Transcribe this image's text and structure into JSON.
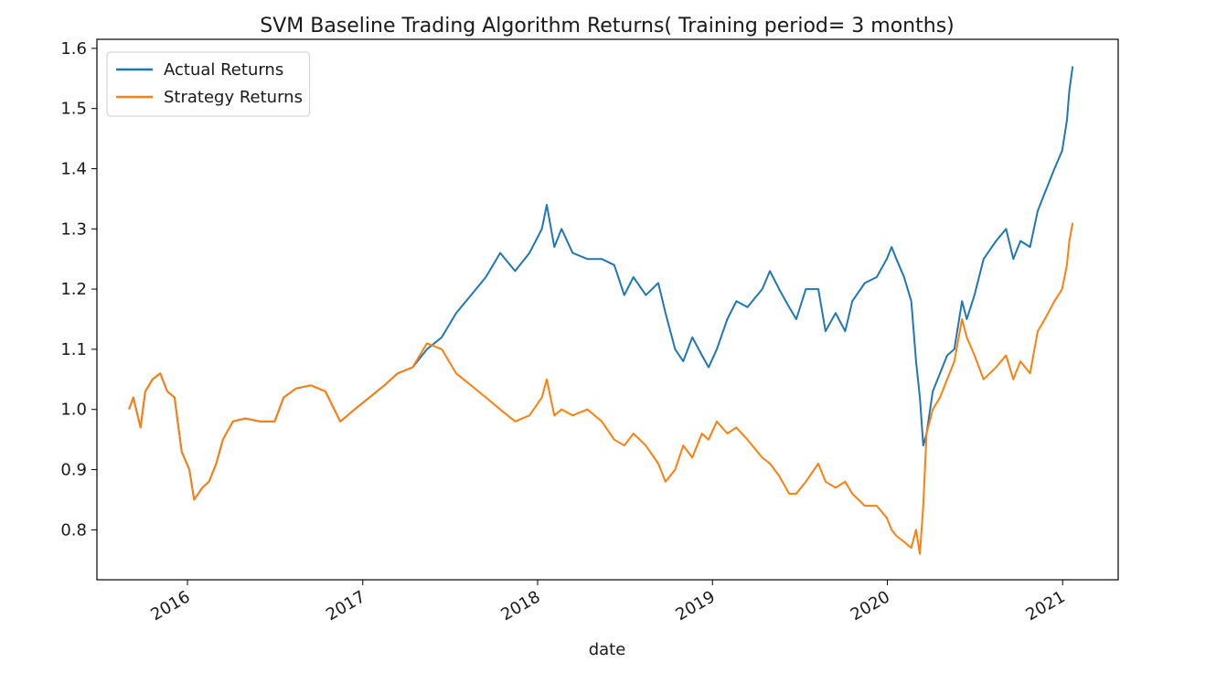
{
  "chart_data": {
    "type": "line",
    "title": "SVM Baseline Trading Algorithm Returns( Training period= 3 months)",
    "xlabel": "date",
    "ylabel": "",
    "x_ticks": [
      "2016",
      "2017",
      "2018",
      "2019",
      "2020",
      "2021"
    ],
    "y_ticks": [
      "0.8",
      "0.9",
      "1.0",
      "1.1",
      "1.2",
      "1.3",
      "1.4",
      "1.5",
      "1.6"
    ],
    "xlim": [
      "2015-06-26",
      "2021-04-27"
    ],
    "ylim": [
      0.717,
      1.615
    ],
    "grid": false,
    "legend_position": "top-left",
    "series": [
      {
        "name": "Actual Returns",
        "color": "#1f77b4",
        "points": [
          [
            "2015-09-01",
            1.0
          ],
          [
            "2015-09-10",
            1.02
          ],
          [
            "2015-09-25",
            0.97
          ],
          [
            "2015-10-05",
            1.03
          ],
          [
            "2015-10-20",
            1.05
          ],
          [
            "2015-11-05",
            1.06
          ],
          [
            "2015-11-20",
            1.03
          ],
          [
            "2015-12-05",
            1.02
          ],
          [
            "2015-12-20",
            0.93
          ],
          [
            "2016-01-05",
            0.9
          ],
          [
            "2016-01-15",
            0.85
          ],
          [
            "2016-02-01",
            0.87
          ],
          [
            "2016-02-15",
            0.88
          ],
          [
            "2016-03-01",
            0.91
          ],
          [
            "2016-03-15",
            0.95
          ],
          [
            "2016-04-05",
            0.98
          ],
          [
            "2016-05-01",
            0.985
          ],
          [
            "2016-06-01",
            0.98
          ],
          [
            "2016-07-01",
            0.98
          ],
          [
            "2016-07-20",
            1.02
          ],
          [
            "2016-08-15",
            1.035
          ],
          [
            "2016-09-15",
            1.04
          ],
          [
            "2016-10-15",
            1.03
          ],
          [
            "2016-11-15",
            0.98
          ],
          [
            "2016-12-15",
            1.0
          ],
          [
            "2017-01-15",
            1.02
          ],
          [
            "2017-02-15",
            1.04
          ],
          [
            "2017-03-15",
            1.06
          ],
          [
            "2017-04-15",
            1.07
          ],
          [
            "2017-05-15",
            1.1
          ],
          [
            "2017-06-15",
            1.12
          ],
          [
            "2017-07-15",
            1.16
          ],
          [
            "2017-08-15",
            1.19
          ],
          [
            "2017-09-15",
            1.22
          ],
          [
            "2017-10-15",
            1.26
          ],
          [
            "2017-11-15",
            1.23
          ],
          [
            "2017-12-15",
            1.26
          ],
          [
            "2018-01-10",
            1.3
          ],
          [
            "2018-01-20",
            1.34
          ],
          [
            "2018-02-05",
            1.27
          ],
          [
            "2018-02-20",
            1.3
          ],
          [
            "2018-03-15",
            1.26
          ],
          [
            "2018-04-15",
            1.25
          ],
          [
            "2018-05-15",
            1.25
          ],
          [
            "2018-06-10",
            1.24
          ],
          [
            "2018-07-01",
            1.19
          ],
          [
            "2018-07-20",
            1.22
          ],
          [
            "2018-08-15",
            1.19
          ],
          [
            "2018-09-10",
            1.21
          ],
          [
            "2018-09-25",
            1.16
          ],
          [
            "2018-10-15",
            1.1
          ],
          [
            "2018-11-01",
            1.08
          ],
          [
            "2018-11-20",
            1.12
          ],
          [
            "2018-12-10",
            1.09
          ],
          [
            "2018-12-24",
            1.07
          ],
          [
            "2019-01-10",
            1.1
          ],
          [
            "2019-02-01",
            1.15
          ],
          [
            "2019-02-20",
            1.18
          ],
          [
            "2019-03-15",
            1.17
          ],
          [
            "2019-04-15",
            1.2
          ],
          [
            "2019-05-01",
            1.23
          ],
          [
            "2019-05-20",
            1.2
          ],
          [
            "2019-06-10",
            1.17
          ],
          [
            "2019-06-25",
            1.15
          ],
          [
            "2019-07-15",
            1.2
          ],
          [
            "2019-08-10",
            1.2
          ],
          [
            "2019-08-25",
            1.13
          ],
          [
            "2019-09-15",
            1.16
          ],
          [
            "2019-10-05",
            1.13
          ],
          [
            "2019-10-20",
            1.18
          ],
          [
            "2019-11-15",
            1.21
          ],
          [
            "2019-12-10",
            1.22
          ],
          [
            "2019-12-31",
            1.25
          ],
          [
            "2020-01-10",
            1.27
          ],
          [
            "2020-01-20",
            1.25
          ],
          [
            "2020-02-05",
            1.22
          ],
          [
            "2020-02-20",
            1.18
          ],
          [
            "2020-03-01",
            1.08
          ],
          [
            "2020-03-09",
            1.02
          ],
          [
            "2020-03-16",
            0.94
          ],
          [
            "2020-03-23",
            0.96
          ],
          [
            "2020-04-05",
            1.03
          ],
          [
            "2020-04-20",
            1.06
          ],
          [
            "2020-05-05",
            1.09
          ],
          [
            "2020-05-20",
            1.1
          ],
          [
            "2020-06-05",
            1.18
          ],
          [
            "2020-06-15",
            1.15
          ],
          [
            "2020-07-01",
            1.19
          ],
          [
            "2020-07-20",
            1.25
          ],
          [
            "2020-08-15",
            1.28
          ],
          [
            "2020-09-05",
            1.3
          ],
          [
            "2020-09-20",
            1.25
          ],
          [
            "2020-10-05",
            1.28
          ],
          [
            "2020-10-25",
            1.27
          ],
          [
            "2020-11-10",
            1.33
          ],
          [
            "2020-11-25",
            1.36
          ],
          [
            "2020-12-15",
            1.4
          ],
          [
            "2020-12-31",
            1.43
          ],
          [
            "2021-01-10",
            1.48
          ],
          [
            "2021-01-15",
            1.53
          ],
          [
            "2021-01-22",
            1.57
          ]
        ]
      },
      {
        "name": "Strategy Returns",
        "color": "#ff7f0e",
        "points": [
          [
            "2015-09-01",
            1.0
          ],
          [
            "2015-09-10",
            1.02
          ],
          [
            "2015-09-25",
            0.97
          ],
          [
            "2015-10-05",
            1.03
          ],
          [
            "2015-10-20",
            1.05
          ],
          [
            "2015-11-05",
            1.06
          ],
          [
            "2015-11-20",
            1.03
          ],
          [
            "2015-12-05",
            1.02
          ],
          [
            "2015-12-20",
            0.93
          ],
          [
            "2016-01-05",
            0.9
          ],
          [
            "2016-01-15",
            0.85
          ],
          [
            "2016-02-01",
            0.87
          ],
          [
            "2016-02-15",
            0.88
          ],
          [
            "2016-03-01",
            0.91
          ],
          [
            "2016-03-15",
            0.95
          ],
          [
            "2016-04-05",
            0.98
          ],
          [
            "2016-05-01",
            0.985
          ],
          [
            "2016-06-01",
            0.98
          ],
          [
            "2016-07-01",
            0.98
          ],
          [
            "2016-07-20",
            1.02
          ],
          [
            "2016-08-15",
            1.035
          ],
          [
            "2016-09-15",
            1.04
          ],
          [
            "2016-10-15",
            1.03
          ],
          [
            "2016-11-15",
            0.98
          ],
          [
            "2016-12-15",
            1.0
          ],
          [
            "2017-01-15",
            1.02
          ],
          [
            "2017-02-15",
            1.04
          ],
          [
            "2017-03-15",
            1.06
          ],
          [
            "2017-04-15",
            1.07
          ],
          [
            "2017-05-15",
            1.11
          ],
          [
            "2017-06-15",
            1.1
          ],
          [
            "2017-07-15",
            1.06
          ],
          [
            "2017-08-15",
            1.04
          ],
          [
            "2017-09-15",
            1.02
          ],
          [
            "2017-10-15",
            1.0
          ],
          [
            "2017-11-15",
            0.98
          ],
          [
            "2017-12-15",
            0.99
          ],
          [
            "2018-01-10",
            1.02
          ],
          [
            "2018-01-20",
            1.05
          ],
          [
            "2018-02-05",
            0.99
          ],
          [
            "2018-02-20",
            1.0
          ],
          [
            "2018-03-15",
            0.99
          ],
          [
            "2018-04-15",
            1.0
          ],
          [
            "2018-05-15",
            0.98
          ],
          [
            "2018-06-10",
            0.95
          ],
          [
            "2018-07-01",
            0.94
          ],
          [
            "2018-07-20",
            0.96
          ],
          [
            "2018-08-15",
            0.94
          ],
          [
            "2018-09-10",
            0.91
          ],
          [
            "2018-09-25",
            0.88
          ],
          [
            "2018-10-15",
            0.9
          ],
          [
            "2018-11-01",
            0.94
          ],
          [
            "2018-11-20",
            0.92
          ],
          [
            "2018-12-10",
            0.96
          ],
          [
            "2018-12-24",
            0.95
          ],
          [
            "2019-01-10",
            0.98
          ],
          [
            "2019-02-01",
            0.96
          ],
          [
            "2019-02-20",
            0.97
          ],
          [
            "2019-03-15",
            0.95
          ],
          [
            "2019-04-15",
            0.92
          ],
          [
            "2019-05-01",
            0.91
          ],
          [
            "2019-05-20",
            0.89
          ],
          [
            "2019-06-10",
            0.86
          ],
          [
            "2019-06-25",
            0.86
          ],
          [
            "2019-07-15",
            0.88
          ],
          [
            "2019-08-10",
            0.91
          ],
          [
            "2019-08-25",
            0.88
          ],
          [
            "2019-09-15",
            0.87
          ],
          [
            "2019-10-05",
            0.88
          ],
          [
            "2019-10-20",
            0.86
          ],
          [
            "2019-11-15",
            0.84
          ],
          [
            "2019-12-10",
            0.84
          ],
          [
            "2019-12-31",
            0.82
          ],
          [
            "2020-01-10",
            0.8
          ],
          [
            "2020-01-20",
            0.79
          ],
          [
            "2020-02-05",
            0.78
          ],
          [
            "2020-02-20",
            0.77
          ],
          [
            "2020-03-01",
            0.8
          ],
          [
            "2020-03-09",
            0.76
          ],
          [
            "2020-03-16",
            0.84
          ],
          [
            "2020-03-23",
            0.96
          ],
          [
            "2020-04-05",
            1.0
          ],
          [
            "2020-04-20",
            1.02
          ],
          [
            "2020-05-05",
            1.05
          ],
          [
            "2020-05-20",
            1.08
          ],
          [
            "2020-06-05",
            1.15
          ],
          [
            "2020-06-15",
            1.12
          ],
          [
            "2020-07-01",
            1.09
          ],
          [
            "2020-07-20",
            1.05
          ],
          [
            "2020-08-15",
            1.07
          ],
          [
            "2020-09-05",
            1.09
          ],
          [
            "2020-09-20",
            1.05
          ],
          [
            "2020-10-05",
            1.08
          ],
          [
            "2020-10-25",
            1.06
          ],
          [
            "2020-11-10",
            1.13
          ],
          [
            "2020-11-25",
            1.15
          ],
          [
            "2020-12-15",
            1.18
          ],
          [
            "2020-12-31",
            1.2
          ],
          [
            "2021-01-10",
            1.24
          ],
          [
            "2021-01-15",
            1.28
          ],
          [
            "2021-01-22",
            1.31
          ]
        ]
      }
    ]
  }
}
